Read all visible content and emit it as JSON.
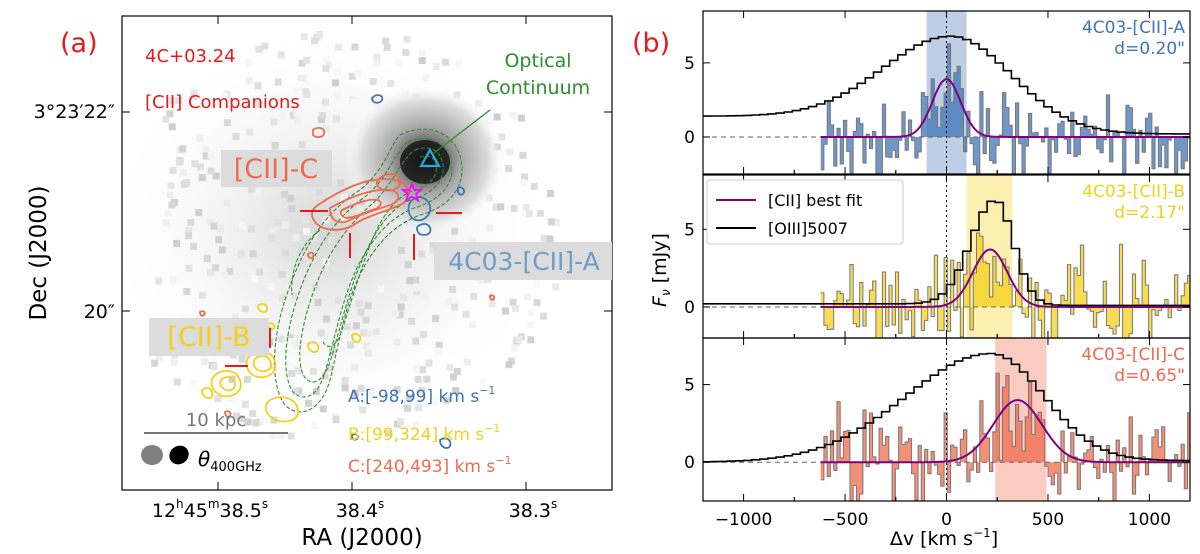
{
  "panel_a": {
    "label": "(a)",
    "label_color": "#e8191b",
    "source_name": "4C+03.24",
    "subtitle": "[CII] Companions",
    "optical_label_line1": "Optical",
    "optical_label_line2": "Continuum",
    "companion_c": "[CII]-C",
    "companion_b": "[CII]-B",
    "companion_a": "4C03-[CII]-A",
    "scale_bar": "10 kpc",
    "beam_label": "θ",
    "beam_sub": "400GHz",
    "vel_a": "A:[-98,99] km s",
    "vel_b": "B:[99,324] km s",
    "vel_c": "C:[240,493] km s",
    "vel_sup": "−1",
    "ytick_top": "3°23′22″",
    "ytick_bottom": "20″",
    "ylabel": "Dec (J2000)",
    "xlabel": "RA (J2000)",
    "xtick_1_h": "12",
    "xtick_1_m": "45",
    "xtick_1_s": "38.5",
    "xtick_2": "38.4",
    "xtick_3": "38.3",
    "colors": {
      "a": "#3f75b5",
      "b": "#f5d01a",
      "c": "#f06a4b",
      "optical": "#2c8f2c",
      "red_text": "#e8191b"
    }
  },
  "panel_b": {
    "label": "(b)",
    "xlabel": "Δv [km s",
    "xlabel_sup": "−1",
    "xlabel_close": "]",
    "ylabel": "F",
    "ylabel_sub": "ν",
    "ylabel_unit": " [mJy]",
    "legend": [
      {
        "label": "[CII] best fit",
        "color": "#800080"
      },
      {
        "label": "[OIII]5007",
        "color": "#000000"
      }
    ]
  },
  "chart_data": {
    "type": "line",
    "x_range": [
      -1200,
      1200
    ],
    "x_ticks": [
      -1000,
      -500,
      0,
      500,
      1000
    ],
    "y_ticks": [
      0,
      5
    ],
    "panels": [
      {
        "name": "4C03-[CII]-A",
        "dist": "d=0.20\"",
        "color": "#3f75b5",
        "ylim": [
          -2.5,
          8.5
        ],
        "band": [
          -98,
          99
        ],
        "gauss": {
          "amp": 3.9,
          "center": 0,
          "sigma": 70
        },
        "oiii": {
          "amp": 6.8,
          "center": 0,
          "left_sigma": 330,
          "right_sigma": 300,
          "floor_left": 1.4,
          "floor_right": 0.2
        },
        "seed": 7
      },
      {
        "name": "4C03-[CII]-B",
        "dist": "d=2.17\"",
        "color": "#f5d01a",
        "ylim": [
          -2.0,
          8.5
        ],
        "band": [
          99,
          324
        ],
        "gauss": {
          "amp": 3.7,
          "center": 215,
          "sigma": 85
        },
        "oiii": {
          "amp": 6.9,
          "center": 220,
          "left_sigma": 120,
          "right_sigma": 90,
          "floor_left": 0.2,
          "floor_right": 0.1
        },
        "seed": 23
      },
      {
        "name": "4C03-[CII]-C",
        "dist": "d=0.65\"",
        "color": "#f06a4b",
        "ylim": [
          -2.5,
          8.0
        ],
        "band": [
          240,
          493
        ],
        "gauss": {
          "amp": 4.0,
          "center": 350,
          "sigma": 120
        },
        "oiii": {
          "amp": 7.0,
          "center": 200,
          "left_sigma": 420,
          "right_sigma": 260,
          "floor_left": 0.0,
          "floor_right": 0.1
        },
        "seed": 41
      }
    ]
  }
}
